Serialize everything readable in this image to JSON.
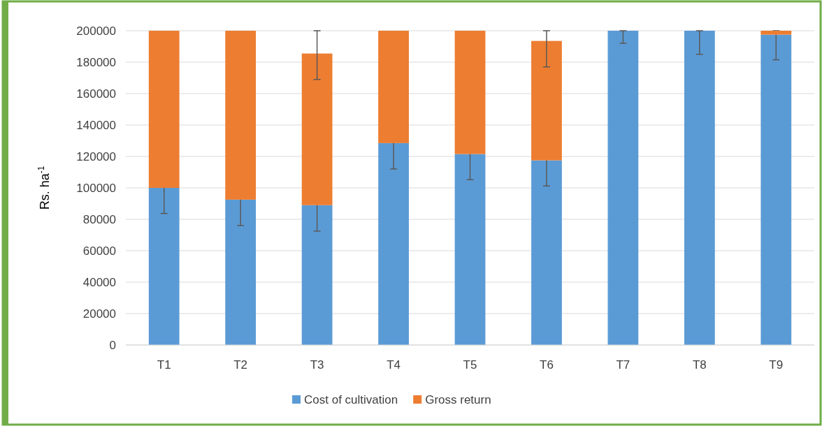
{
  "chart_data": {
    "type": "bar",
    "stacked": true,
    "ylabel": "Rs. ha$^{-1}$",
    "categories": [
      "T1",
      "T2",
      "T3",
      "T4",
      "T5",
      "T6",
      "T7",
      "T8",
      "T9"
    ],
    "series": [
      {
        "name": "Cost of cultivation",
        "color": "#5b9bd5",
        "values": [
          100000,
          92500,
          89000,
          128500,
          121500,
          117500,
          200000,
          200000,
          197500
        ],
        "errors": [
          16300,
          16500,
          16500,
          16500,
          16300,
          16300,
          [
            192000,
            200000
          ],
          [
            185000,
            200000
          ],
          [
            181500,
            200000
          ]
        ]
      },
      {
        "name": "Gross return",
        "color": "#ed7d31",
        "values": [
          100000,
          107500,
          96500,
          71500,
          78500,
          76000,
          null,
          null,
          2500
        ],
        "errors": [
          null,
          null,
          [
            169000,
            200000
          ],
          null,
          null,
          [
            177000,
            200000
          ],
          null,
          null,
          null
        ]
      }
    ],
    "ylim": [
      0,
      200000
    ],
    "yticks": [
      0,
      20000,
      40000,
      60000,
      80000,
      100000,
      120000,
      140000,
      160000,
      180000,
      200000
    ],
    "grid": "y",
    "legend": "bottom"
  }
}
